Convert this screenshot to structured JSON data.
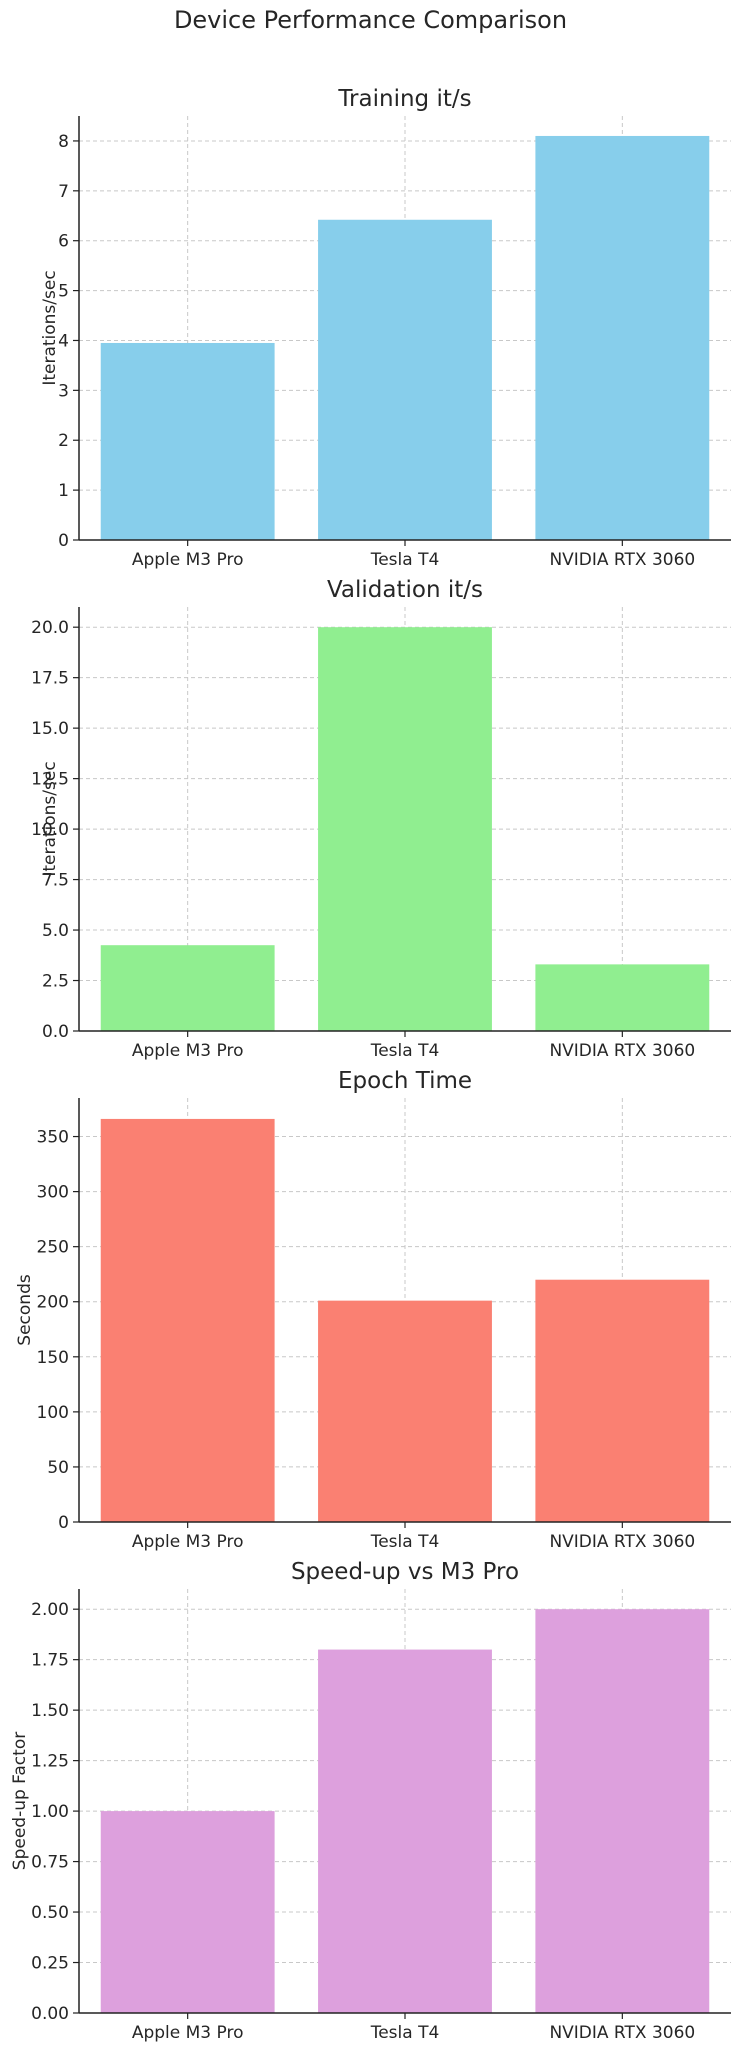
{
  "figure": {
    "title": "Device Performance Comparison"
  },
  "chart_data": [
    {
      "type": "bar",
      "title": "Training it/s",
      "xlabel": "",
      "ylabel": "Iterations/sec",
      "categories": [
        "Apple M3 Pro",
        "Tesla T4",
        "NVIDIA RTX 3060"
      ],
      "values": [
        3.95,
        6.42,
        8.1
      ],
      "ylim": [
        0,
        8.5
      ],
      "yticks": [
        0,
        1,
        2,
        3,
        4,
        5,
        6,
        7,
        8
      ],
      "tick_labels": [
        "0",
        "1",
        "2",
        "3",
        "4",
        "5",
        "6",
        "7",
        "8"
      ],
      "color": "#87ceeb",
      "grid": true
    },
    {
      "type": "bar",
      "title": "Validation it/s",
      "xlabel": "",
      "ylabel": "Iterations/sec",
      "categories": [
        "Apple M3 Pro",
        "Tesla T4",
        "NVIDIA RTX 3060"
      ],
      "values": [
        4.25,
        20.0,
        3.3
      ],
      "ylim": [
        0,
        21.0
      ],
      "yticks": [
        0,
        2.5,
        5,
        7.5,
        10,
        12.5,
        15,
        17.5,
        20
      ],
      "tick_labels": [
        "0.0",
        "2.5",
        "5.0",
        "7.5",
        "10.0",
        "12.5",
        "15.0",
        "17.5",
        "20.0"
      ],
      "color": "#90ee90",
      "grid": true
    },
    {
      "type": "bar",
      "title": "Epoch Time",
      "xlabel": "",
      "ylabel": "Seconds",
      "categories": [
        "Apple M3 Pro",
        "Tesla T4",
        "NVIDIA RTX 3060"
      ],
      "values": [
        366,
        201,
        220
      ],
      "ylim": [
        0,
        385
      ],
      "yticks": [
        0,
        50,
        100,
        150,
        200,
        250,
        300,
        350
      ],
      "tick_labels": [
        "0",
        "50",
        "100",
        "150",
        "200",
        "250",
        "300",
        "350"
      ],
      "color": "#fa8072",
      "grid": true
    },
    {
      "type": "bar",
      "title": "Speed-up vs M3 Pro",
      "xlabel": "",
      "ylabel": "Speed-up Factor",
      "categories": [
        "Apple M3 Pro",
        "Tesla T4",
        "NVIDIA RTX 3060"
      ],
      "values": [
        1.0,
        1.8,
        2.0
      ],
      "ylim": [
        0,
        2.1
      ],
      "yticks": [
        0,
        0.25,
        0.5,
        0.75,
        1.0,
        1.25,
        1.5,
        1.75,
        2.0
      ],
      "tick_labels": [
        "0.00",
        "0.25",
        "0.50",
        "0.75",
        "1.00",
        "1.25",
        "1.50",
        "1.75",
        "2.00"
      ],
      "color": "#dda0dd",
      "grid": true
    }
  ]
}
